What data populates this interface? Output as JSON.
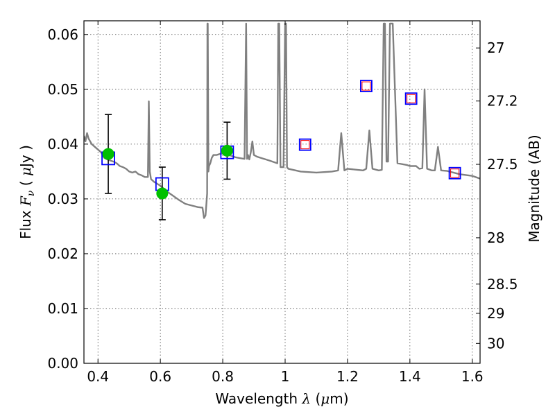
{
  "chart_data": {
    "type": "scatter",
    "xlabel": "Wavelength  λ (μm)",
    "ylabel": "Flux  Fν  ( μJy )",
    "y2label": "Magnitude (AB)",
    "xlim": [
      0.355,
      1.625
    ],
    "ylim": [
      0.0,
      0.0625
    ],
    "x_ticks": [
      0.4,
      0.6,
      0.8,
      1.0,
      1.2,
      1.4,
      1.6
    ],
    "x_tick_labels": [
      "0.4",
      "0.6",
      "0.8",
      "1",
      "1.2",
      "1.4",
      "1.6"
    ],
    "y_ticks": [
      0.0,
      0.01,
      0.02,
      0.03,
      0.04,
      0.05,
      0.06
    ],
    "y_tick_labels": [
      "0.00",
      "0.01",
      "0.02",
      "0.03",
      "0.04",
      "0.05",
      "0.06"
    ],
    "y2_ticks": [
      27,
      27.2,
      27.5,
      28,
      28.5,
      29,
      30
    ],
    "y2_tick_labels": [
      "27",
      "27.2",
      "27.5",
      "28",
      "28.5",
      "29",
      "30"
    ],
    "grid": true,
    "colors": {
      "template": "#808080",
      "observed": "#00c000",
      "model_box": "#0000ff",
      "nir_inner": "#ff0000",
      "errorbar": "#000000"
    },
    "series": [
      {
        "role": "template-sed",
        "style": "line",
        "x": [
          0.355,
          0.36,
          0.365,
          0.37,
          0.38,
          0.39,
          0.4,
          0.41,
          0.42,
          0.43,
          0.44,
          0.45,
          0.46,
          0.47,
          0.48,
          0.49,
          0.5,
          0.51,
          0.52,
          0.53,
          0.54,
          0.55,
          0.56,
          0.563,
          0.566,
          0.57,
          0.58,
          0.6,
          0.62,
          0.64,
          0.66,
          0.68,
          0.7,
          0.72,
          0.735,
          0.74,
          0.745,
          0.75,
          0.751,
          0.752,
          0.754,
          0.756,
          0.76,
          0.765,
          0.77,
          0.78,
          0.79,
          0.8,
          0.81,
          0.82,
          0.84,
          0.86,
          0.87,
          0.875,
          0.878,
          0.881,
          0.885,
          0.89,
          0.895,
          0.9,
          0.91,
          0.95,
          0.975,
          0.978,
          0.981,
          0.985,
          0.995,
          1.0,
          1.003,
          1.006,
          1.01,
          1.05,
          1.1,
          1.15,
          1.17,
          1.18,
          1.19,
          1.2,
          1.25,
          1.26,
          1.27,
          1.28,
          1.3,
          1.31,
          1.316,
          1.32,
          1.325,
          1.33,
          1.336,
          1.345,
          1.36,
          1.39,
          1.4,
          1.42,
          1.43,
          1.44,
          1.447,
          1.455,
          1.47,
          1.48,
          1.49,
          1.5,
          1.52,
          1.56,
          1.6,
          1.625
        ],
        "y": [
          0.0415,
          0.0405,
          0.042,
          0.041,
          0.04,
          0.0395,
          0.039,
          0.0385,
          0.0375,
          0.0372,
          0.037,
          0.0368,
          0.0365,
          0.036,
          0.0358,
          0.0355,
          0.035,
          0.0348,
          0.035,
          0.0345,
          0.0343,
          0.034,
          0.034,
          0.0478,
          0.035,
          0.0336,
          0.0331,
          0.0324,
          0.0314,
          0.0306,
          0.0298,
          0.0291,
          0.0288,
          0.0285,
          0.0284,
          0.0265,
          0.027,
          0.031,
          0.062,
          0.062,
          0.035,
          0.036,
          0.0365,
          0.0375,
          0.038,
          0.038,
          0.0382,
          0.0383,
          0.0385,
          0.038,
          0.0376,
          0.0374,
          0.0373,
          0.062,
          0.0373,
          0.038,
          0.0372,
          0.0385,
          0.0405,
          0.038,
          0.0377,
          0.037,
          0.0365,
          0.062,
          0.062,
          0.0358,
          0.0358,
          0.062,
          0.062,
          0.0358,
          0.0355,
          0.035,
          0.0348,
          0.035,
          0.0352,
          0.042,
          0.0352,
          0.0355,
          0.0352,
          0.0355,
          0.0425,
          0.0355,
          0.0352,
          0.0353,
          0.062,
          0.062,
          0.0368,
          0.0368,
          0.062,
          0.062,
          0.0365,
          0.0362,
          0.036,
          0.036,
          0.0355,
          0.0356,
          0.05,
          0.0355,
          0.0352,
          0.0352,
          0.0395,
          0.0352,
          0.0351,
          0.0345,
          0.0342,
          0.0337
        ],
        "color": "#808080"
      },
      {
        "role": "observed-flux",
        "style": "points-with-errorbars",
        "x": [
          0.433,
          0.606,
          0.814
        ],
        "y": [
          0.0382,
          0.031,
          0.0388
        ],
        "yerr": [
          0.0072,
          0.0048,
          0.0052
        ],
        "color": "#00c000"
      },
      {
        "role": "model-flux-optical",
        "style": "open-squares",
        "x": [
          0.433,
          0.606,
          0.814
        ],
        "y": [
          0.0374,
          0.0327,
          0.0385
        ],
        "color": "#0000ff"
      },
      {
        "role": "model-flux-nir",
        "style": "open-squares-with-inner-square",
        "x": [
          1.064,
          1.26,
          1.404,
          1.544
        ],
        "y": [
          0.0399,
          0.0506,
          0.0483,
          0.0347
        ],
        "color": "#0000ff",
        "inner_color": "#ff0000"
      }
    ]
  }
}
